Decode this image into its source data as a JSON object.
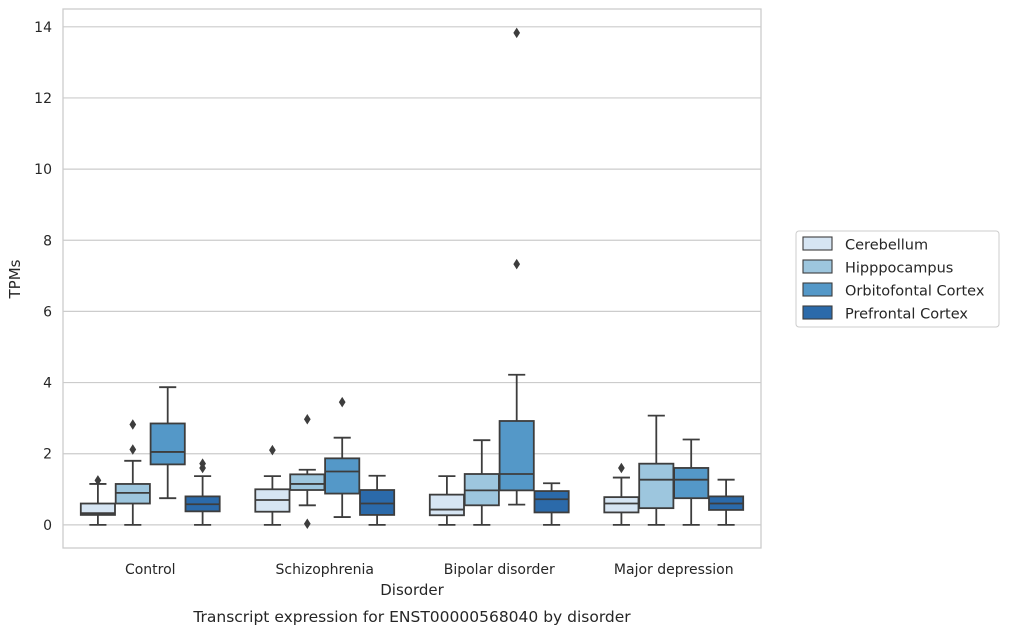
{
  "caption": "Transcript expression for ENST00000568040 by disorder",
  "chart_data": {
    "type": "box",
    "xlabel": "Disorder",
    "ylabel": "TPMs",
    "ylim": [
      -0.65,
      14.5
    ],
    "yticks": [
      0,
      2,
      4,
      6,
      8,
      10,
      12,
      14
    ],
    "grid": "horizontal",
    "legend_position": "right",
    "categories": [
      "Control",
      "Schizophrenia",
      "Bipolar disorder",
      "Major depression"
    ],
    "series": [
      {
        "name": "Cerebellum",
        "color": "#d6e5f3",
        "boxes": [
          {
            "whislo": 0.0,
            "q1": 0.28,
            "med": 0.33,
            "q3": 0.6,
            "whishi": 1.15,
            "fliers": [
              1.25
            ]
          },
          {
            "whislo": 0.0,
            "q1": 0.37,
            "med": 0.7,
            "q3": 1.0,
            "whishi": 1.37,
            "fliers": [
              2.1
            ]
          },
          {
            "whislo": 0.0,
            "q1": 0.27,
            "med": 0.43,
            "q3": 0.85,
            "whishi": 1.37,
            "fliers": []
          },
          {
            "whislo": 0.0,
            "q1": 0.35,
            "med": 0.6,
            "q3": 0.78,
            "whishi": 1.33,
            "fliers": [
              1.6
            ]
          }
        ]
      },
      {
        "name": "Hipppocampus",
        "color": "#9dc6de",
        "boxes": [
          {
            "whislo": 0.0,
            "q1": 0.6,
            "med": 0.9,
            "q3": 1.15,
            "whishi": 1.8,
            "fliers": [
              2.12,
              2.82
            ]
          },
          {
            "whislo": 0.55,
            "q1": 0.98,
            "med": 1.15,
            "q3": 1.42,
            "whishi": 1.55,
            "fliers": [
              0.03,
              2.97
            ]
          },
          {
            "whislo": 0.0,
            "q1": 0.55,
            "med": 0.97,
            "q3": 1.43,
            "whishi": 2.38,
            "fliers": []
          },
          {
            "whislo": 0.0,
            "q1": 0.47,
            "med": 1.27,
            "q3": 1.72,
            "whishi": 3.07,
            "fliers": []
          }
        ]
      },
      {
        "name": "Orbitofontal Cortex",
        "color": "#5498c8",
        "boxes": [
          {
            "whislo": 0.75,
            "q1": 1.7,
            "med": 2.05,
            "q3": 2.85,
            "whishi": 3.87,
            "fliers": []
          },
          {
            "whislo": 0.22,
            "q1": 0.88,
            "med": 1.5,
            "q3": 1.87,
            "whishi": 2.45,
            "fliers": [
              3.45
            ]
          },
          {
            "whislo": 0.57,
            "q1": 0.97,
            "med": 1.43,
            "q3": 2.92,
            "whishi": 4.22,
            "fliers": [
              7.33,
              13.83
            ]
          },
          {
            "whislo": 0.0,
            "q1": 0.75,
            "med": 1.27,
            "q3": 1.6,
            "whishi": 2.4,
            "fliers": []
          }
        ]
      },
      {
        "name": "Prefrontal Cortex",
        "color": "#2b6aaa",
        "boxes": [
          {
            "whislo": 0.0,
            "q1": 0.38,
            "med": 0.58,
            "q3": 0.8,
            "whishi": 1.37,
            "fliers": [
              1.6,
              1.72
            ]
          },
          {
            "whislo": 0.0,
            "q1": 0.28,
            "med": 0.6,
            "q3": 0.98,
            "whishi": 1.38,
            "fliers": []
          },
          {
            "whislo": 0.0,
            "q1": 0.35,
            "med": 0.72,
            "q3": 0.95,
            "whishi": 1.17,
            "fliers": []
          },
          {
            "whislo": 0.0,
            "q1": 0.42,
            "med": 0.6,
            "q3": 0.8,
            "whishi": 1.27,
            "fliers": []
          }
        ]
      }
    ]
  }
}
